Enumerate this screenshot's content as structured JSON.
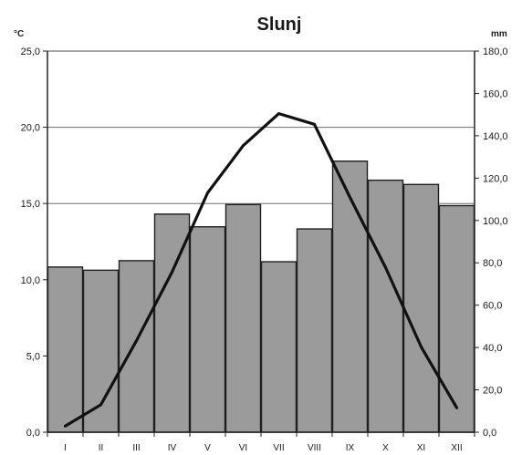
{
  "chart_data": {
    "type": "bar",
    "title": "Slunj",
    "categories": [
      "I",
      "II",
      "III",
      "IV",
      "V",
      "VI",
      "VII",
      "VIII",
      "IX",
      "X",
      "XI",
      "XII"
    ],
    "series": [
      {
        "axis": "right",
        "type": "bar",
        "values": [
          78,
          76.5,
          81,
          103,
          97,
          107.5,
          80.5,
          96,
          128,
          119,
          117,
          107
        ]
      },
      {
        "axis": "left",
        "type": "line",
        "values": [
          0.4,
          1.8,
          6.0,
          10.5,
          15.7,
          18.8,
          20.9,
          20.2,
          15.4,
          10.8,
          5.6,
          1.6
        ]
      }
    ],
    "left_axis": {
      "unit": "°C",
      "ylim": [
        0,
        25
      ],
      "ticks": [
        "0,0",
        "5,0",
        "10,0",
        "15,0",
        "20,0",
        "25,0"
      ]
    },
    "right_axis": {
      "unit": "mm",
      "ylim": [
        0,
        180
      ],
      "ticks": [
        "0,0",
        "20,0",
        "40,0",
        "60,0",
        "80,0",
        "100,0",
        "120,0",
        "140,0",
        "160,0",
        "180,0"
      ]
    },
    "grid": true,
    "colors": {
      "bar_fill": "#9b9b9b",
      "bar_stroke": "#1f1f1f",
      "line": "#111111",
      "grid": "#6e6e6e"
    }
  }
}
